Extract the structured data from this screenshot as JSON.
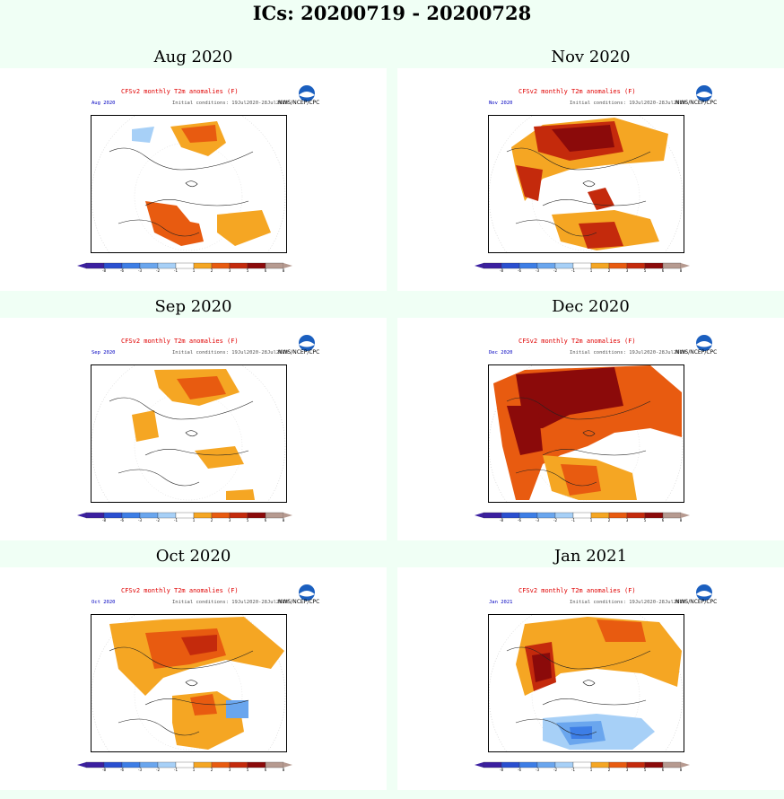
{
  "page_title": "ICs: 20200719 - 20200728",
  "map_common": {
    "product_title": "CFSv2 monthly T2m anomalies (F)",
    "initial_conditions": "Initial conditions: 19Jul2020-28Jul2020",
    "agency": "NWS/NCEP/CPC"
  },
  "colorbar": {
    "ticks": [
      "-8",
      "-6",
      "-3",
      "-2",
      "-1",
      "1",
      "2",
      "3",
      "5",
      "6",
      "8"
    ],
    "colors": [
      "#3b1fa0",
      "#2a4fd0",
      "#3d7ee6",
      "#6aa6ee",
      "#a7d0f7",
      "#ffffff",
      "#f5a623",
      "#e85b10",
      "#c42a0c",
      "#8b0a0a",
      "#b69a90"
    ]
  },
  "panels": [
    {
      "title": "Aug 2020",
      "short_label": "Aug 2020",
      "pattern": "aug"
    },
    {
      "title": "Nov 2020",
      "short_label": "Nov 2020",
      "pattern": "nov"
    },
    {
      "title": "Sep 2020",
      "short_label": "Sep 2020",
      "pattern": "sep"
    },
    {
      "title": "Dec 2020",
      "short_label": "Dec 2020",
      "pattern": "dec"
    },
    {
      "title": "Oct 2020",
      "short_label": "Oct 2020",
      "pattern": "oct"
    },
    {
      "title": "Jan 2021",
      "short_label": "Jan 2021",
      "pattern": "jan"
    }
  ]
}
